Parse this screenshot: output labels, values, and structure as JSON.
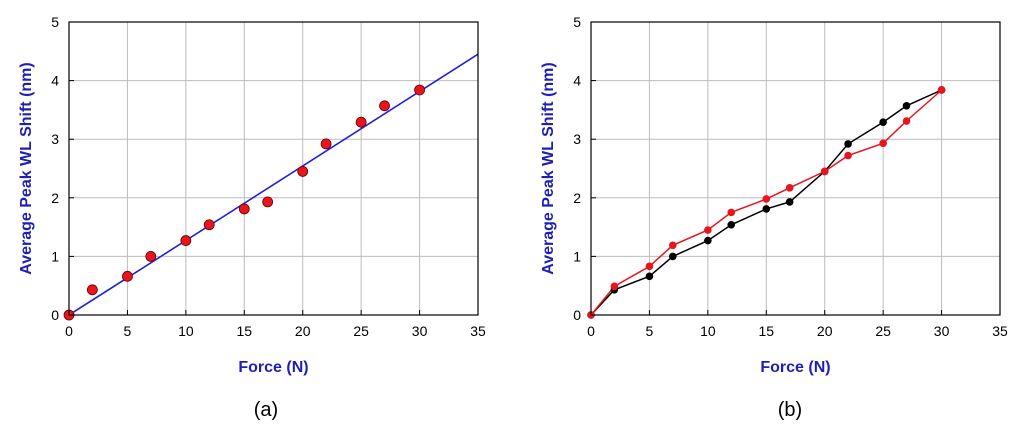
{
  "colors": {
    "axis_label": "#1f1fb4",
    "fit_line": "#1f1fe0",
    "marker_red": "#e8141e",
    "marker_black": "#000000",
    "grid": "#bdbdbd",
    "frame": "#000000"
  },
  "chart_data": [
    {
      "type": "scatter",
      "panel_caption": "(a)",
      "xlabel": "Force (N)",
      "ylabel": "Average Peak WL Shift (nm)",
      "xlim": [
        0,
        35
      ],
      "ylim": [
        0,
        5
      ],
      "xticks": [
        0,
        5,
        10,
        15,
        20,
        25,
        30,
        35
      ],
      "yticks": [
        0,
        1,
        2,
        3,
        4,
        5
      ],
      "grid": true,
      "series": [
        {
          "kind": "markers",
          "color": "#e8141e",
          "points": [
            [
              0,
              0
            ],
            [
              2,
              0.43
            ],
            [
              5,
              0.66
            ],
            [
              7,
              1.0
            ],
            [
              10,
              1.27
            ],
            [
              12,
              1.54
            ],
            [
              15,
              1.81
            ],
            [
              17,
              1.93
            ],
            [
              20,
              2.45
            ],
            [
              22,
              2.92
            ],
            [
              25,
              3.29
            ],
            [
              27,
              3.57
            ],
            [
              30,
              3.84
            ]
          ]
        },
        {
          "kind": "line",
          "color": "#1f1fe0",
          "points": [
            [
              0,
              0
            ],
            [
              35,
              4.45
            ]
          ]
        }
      ]
    },
    {
      "type": "line",
      "panel_caption": "(b)",
      "xlabel": "Force (N)",
      "ylabel": "Average Peak WL Shift (nm)",
      "xlim": [
        0,
        35
      ],
      "ylim": [
        0,
        5
      ],
      "xticks": [
        0,
        5,
        10,
        15,
        20,
        25,
        30,
        35
      ],
      "yticks": [
        0,
        1,
        2,
        3,
        4,
        5
      ],
      "grid": true,
      "series": [
        {
          "kind": "line-markers",
          "color": "#000000",
          "points": [
            [
              0,
              0
            ],
            [
              2,
              0.43
            ],
            [
              5,
              0.66
            ],
            [
              7,
              1.0
            ],
            [
              10,
              1.27
            ],
            [
              12,
              1.54
            ],
            [
              15,
              1.81
            ],
            [
              17,
              1.93
            ],
            [
              20,
              2.45
            ],
            [
              22,
              2.92
            ],
            [
              25,
              3.29
            ],
            [
              27,
              3.57
            ],
            [
              30,
              3.84
            ]
          ]
        },
        {
          "kind": "line-markers",
          "color": "#e8141e",
          "points": [
            [
              0,
              0
            ],
            [
              2,
              0.49
            ],
            [
              5,
              0.83
            ],
            [
              7,
              1.19
            ],
            [
              10,
              1.45
            ],
            [
              12,
              1.75
            ],
            [
              15,
              1.98
            ],
            [
              17,
              2.17
            ],
            [
              20,
              2.45
            ],
            [
              22,
              2.72
            ],
            [
              25,
              2.93
            ],
            [
              27,
              3.31
            ],
            [
              30,
              3.84
            ]
          ]
        }
      ]
    }
  ]
}
